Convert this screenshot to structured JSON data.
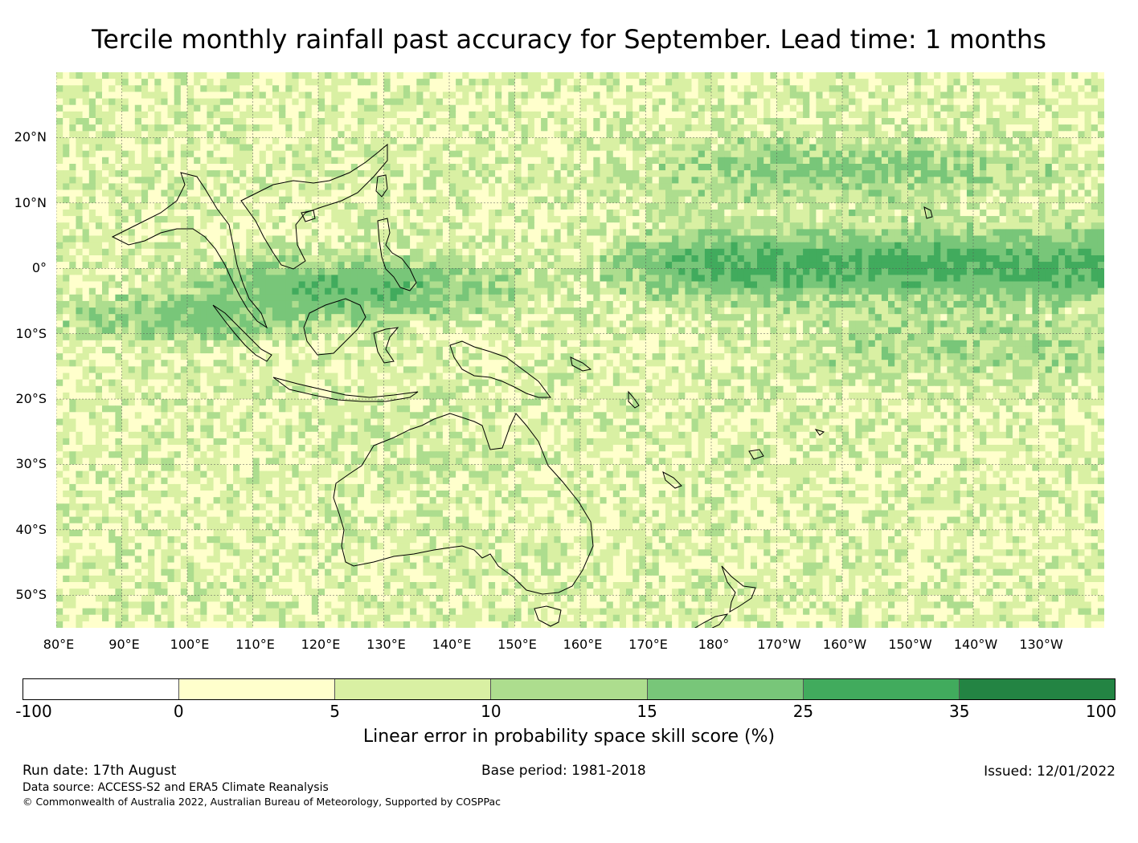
{
  "title": "Tercile monthly rainfall past accuracy for September. Lead time: 1 months",
  "map": {
    "lat_range": [
      -55,
      30
    ],
    "lon_range": [
      80,
      240
    ],
    "lat_ticks": [
      {
        "value": 20,
        "label": "20°N"
      },
      {
        "value": 10,
        "label": "10°N"
      },
      {
        "value": 0,
        "label": "0°"
      },
      {
        "value": -10,
        "label": "10°S"
      },
      {
        "value": -20,
        "label": "20°S"
      },
      {
        "value": -30,
        "label": "30°S"
      },
      {
        "value": -40,
        "label": "40°S"
      },
      {
        "value": -50,
        "label": "50°S"
      }
    ],
    "lon_ticks": [
      {
        "value": 80,
        "label": "80°E"
      },
      {
        "value": 90,
        "label": "90°E"
      },
      {
        "value": 100,
        "label": "100°E"
      },
      {
        "value": 110,
        "label": "110°E"
      },
      {
        "value": 120,
        "label": "120°E"
      },
      {
        "value": 130,
        "label": "130°E"
      },
      {
        "value": 140,
        "label": "140°E"
      },
      {
        "value": 150,
        "label": "150°E"
      },
      {
        "value": 160,
        "label": "160°E"
      },
      {
        "value": 170,
        "label": "170°E"
      },
      {
        "value": 180,
        "label": "180°"
      },
      {
        "value": 190,
        "label": "170°W"
      },
      {
        "value": 200,
        "label": "160°W"
      },
      {
        "value": 210,
        "label": "150°W"
      },
      {
        "value": 220,
        "label": "140°W"
      },
      {
        "value": 230,
        "label": "130°W"
      }
    ],
    "gridlines": true
  },
  "colorbar": {
    "label": "Linear error in probability space skill score (%)",
    "ticks": [
      "-100",
      "0",
      "5",
      "10",
      "15",
      "25",
      "35",
      "100"
    ],
    "colors": [
      "#ffffff",
      "#ffffcc",
      "#d9f0a3",
      "#addd8e",
      "#78c679",
      "#41ab5d",
      "#238443"
    ]
  },
  "footer": {
    "run_date": "Run date: 17th August",
    "base_period": "Base period: 1981-2018",
    "issued": "Issued: 12/01/2022",
    "data_source": "Data source: ACCESS-S2 and ERA5 Climate Reanalysis",
    "copyright": "© Commonwealth of Australia 2022, Australian Bureau of Meteorology, Supported by COSPPac"
  }
}
